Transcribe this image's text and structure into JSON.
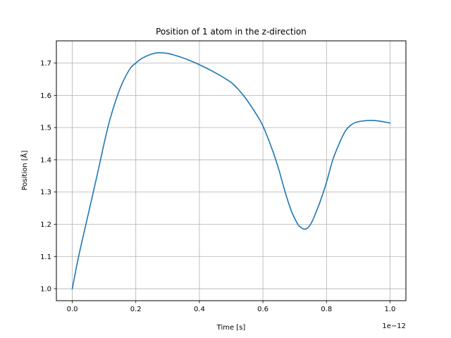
{
  "chart_data": {
    "type": "line",
    "title": "Position of 1 atom in the z-direction",
    "xlabel": "Time [s]",
    "ylabel": "Position [Å]",
    "x_offset_label": "1e−12",
    "xlim": [
      -0.05,
      1.05
    ],
    "ylim": [
      0.963,
      1.769
    ],
    "grid": true,
    "xticks": [
      0.0,
      0.2,
      0.4,
      0.6,
      0.8,
      1.0
    ],
    "xtick_labels": [
      "0.0",
      "0.2",
      "0.4",
      "0.6",
      "0.8",
      "1.0"
    ],
    "yticks": [
      1.0,
      1.1,
      1.2,
      1.3,
      1.4,
      1.5,
      1.6,
      1.7
    ],
    "ytick_labels": [
      "1.0",
      "1.1",
      "1.2",
      "1.3",
      "1.4",
      "1.5",
      "1.6",
      "1.7"
    ],
    "series": [
      {
        "color": "#1f77b4",
        "x": [
          0.0,
          0.02,
          0.05,
          0.08,
          0.1,
          0.12,
          0.15,
          0.18,
          0.2,
          0.22,
          0.25,
          0.27,
          0.3,
          0.33,
          0.36,
          0.4,
          0.45,
          0.5,
          0.53,
          0.55,
          0.58,
          0.6,
          0.63,
          0.65,
          0.67,
          0.69,
          0.71,
          0.72,
          0.73,
          0.74,
          0.75,
          0.76,
          0.78,
          0.8,
          0.82,
          0.84,
          0.86,
          0.88,
          0.9,
          0.92,
          0.94,
          0.96,
          0.98,
          1.0
        ],
        "y": [
          1.0,
          1.1,
          1.23,
          1.36,
          1.45,
          1.53,
          1.62,
          1.68,
          1.7,
          1.715,
          1.728,
          1.732,
          1.73,
          1.722,
          1.712,
          1.695,
          1.67,
          1.64,
          1.61,
          1.585,
          1.54,
          1.505,
          1.43,
          1.37,
          1.3,
          1.24,
          1.2,
          1.19,
          1.185,
          1.188,
          1.2,
          1.22,
          1.27,
          1.33,
          1.4,
          1.45,
          1.49,
          1.51,
          1.518,
          1.521,
          1.522,
          1.521,
          1.518,
          1.514
        ]
      }
    ]
  }
}
